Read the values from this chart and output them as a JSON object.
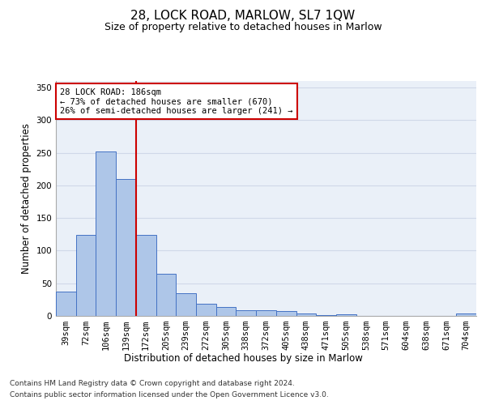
{
  "title": "28, LOCK ROAD, MARLOW, SL7 1QW",
  "subtitle": "Size of property relative to detached houses in Marlow",
  "xlabel": "Distribution of detached houses by size in Marlow",
  "ylabel": "Number of detached properties",
  "categories": [
    "39sqm",
    "72sqm",
    "106sqm",
    "139sqm",
    "172sqm",
    "205sqm",
    "239sqm",
    "272sqm",
    "305sqm",
    "338sqm",
    "372sqm",
    "405sqm",
    "438sqm",
    "471sqm",
    "505sqm",
    "538sqm",
    "571sqm",
    "604sqm",
    "638sqm",
    "671sqm",
    "704sqm"
  ],
  "values": [
    37,
    124,
    252,
    210,
    124,
    65,
    35,
    19,
    14,
    9,
    9,
    8,
    4,
    1,
    2,
    0,
    0,
    0,
    0,
    0,
    4
  ],
  "bar_color": "#aec6e8",
  "bar_edge_color": "#4472c4",
  "grid_color": "#d0d8e8",
  "background_color": "#eaf0f8",
  "annotation_box_text": "28 LOCK ROAD: 186sqm\n← 73% of detached houses are smaller (670)\n26% of semi-detached houses are larger (241) →",
  "annotation_box_color": "#ffffff",
  "annotation_box_edge_color": "#cc0000",
  "ref_line_color": "#cc0000",
  "ylim": [
    0,
    360
  ],
  "yticks": [
    0,
    50,
    100,
    150,
    200,
    250,
    300,
    350
  ],
  "footer_line1": "Contains HM Land Registry data © Crown copyright and database right 2024.",
  "footer_line2": "Contains public sector information licensed under the Open Government Licence v3.0.",
  "title_fontsize": 11,
  "subtitle_fontsize": 9,
  "xlabel_fontsize": 8.5,
  "ylabel_fontsize": 8.5,
  "tick_fontsize": 7.5,
  "footer_fontsize": 6.5,
  "ann_fontsize": 7.5
}
